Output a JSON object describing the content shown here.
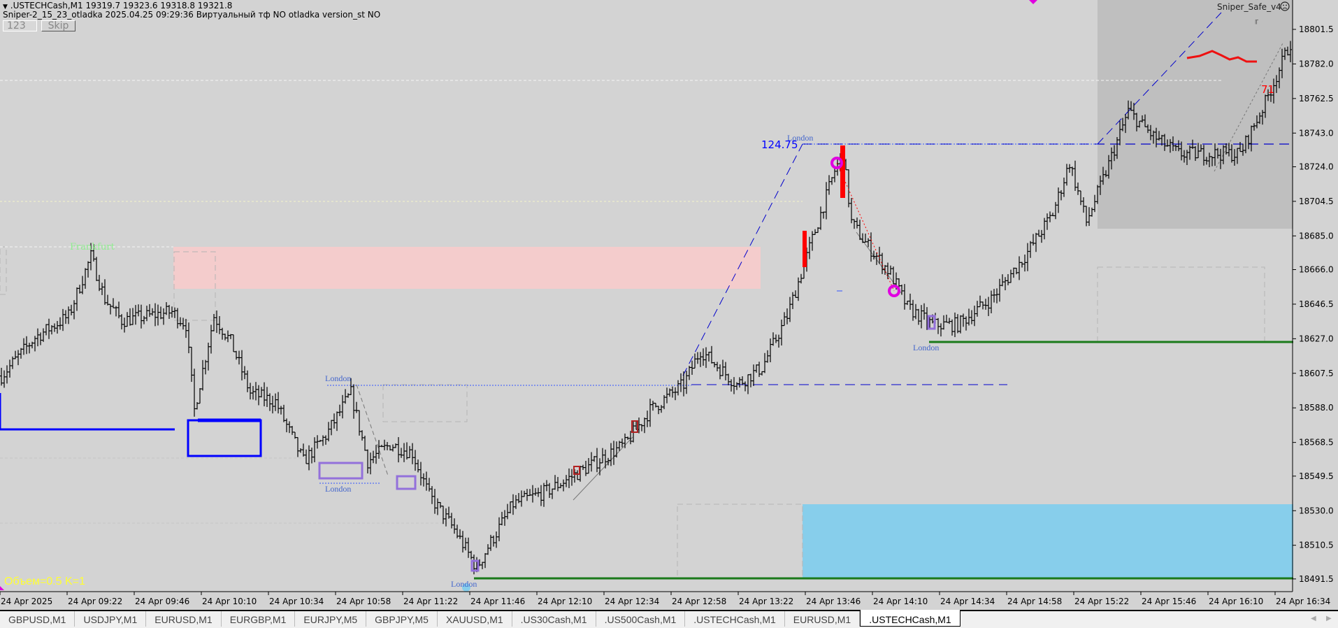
{
  "header": {
    "symbol_line": ".USTECHCash,M1  19319.7 19323.6 19318.8 19321.8",
    "indicator_line": "Sniper-2_15_23_otladka  2025.04.25 09:29:36  Виртуальный тф NO  otladka  version_st NO",
    "input_value": "123",
    "skip_label": "Skip"
  },
  "expert": {
    "name": "Sniper_Safe_v4",
    "status_icon": "sad-face-icon"
  },
  "chart_labels": {
    "volume": "Объем=0.5 K=1",
    "range_value": "124.75",
    "count": "71",
    "frankfurt": "Frankfurt",
    "london": "London"
  },
  "colors": {
    "background": "#d3d3d3",
    "bars": "#000000",
    "supply_zone": "#f4cccc",
    "demand_zone": "#87ceeb",
    "session_box": "#bfbfbf",
    "support_line": "#1a7a1a",
    "blue_level": "#0000ff",
    "marker": "#e000e0",
    "volume_text": "#ffff33"
  },
  "price_axis": [
    "18801.5",
    "18782.0",
    "18762.5",
    "18743.0",
    "18724.0",
    "18704.5",
    "18685.0",
    "18666.0",
    "18646.5",
    "18627.0",
    "18607.5",
    "18588.0",
    "18568.5",
    "18549.5",
    "18530.0",
    "18510.5",
    "18491.5"
  ],
  "time_axis": [
    "24 Apr 2025",
    "24 Apr 09:22",
    "24 Apr 09:46",
    "24 Apr 10:10",
    "24 Apr 10:34",
    "24 Apr 10:58",
    "24 Apr 11:22",
    "24 Apr 11:46",
    "24 Apr 12:10",
    "24 Apr 12:34",
    "24 Apr 12:58",
    "24 Apr 13:22",
    "24 Apr 13:46",
    "24 Apr 14:10",
    "24 Apr 14:34",
    "24 Apr 14:58",
    "24 Apr 15:22",
    "24 Apr 15:46",
    "24 Apr 16:10",
    "24 Apr 16:34"
  ],
  "price_path": [
    [
      "08:58",
      18606
    ],
    [
      "09:10",
      18627.7
    ],
    [
      "09:22",
      18639.7
    ],
    [
      "09:30",
      18673.5
    ],
    [
      "09:35",
      18649.4
    ],
    [
      "09:41",
      18637.3
    ],
    [
      "09:59",
      18642.2
    ],
    [
      "10:04",
      18635
    ],
    [
      "10:07",
      18586.7
    ],
    [
      "10:14",
      18639.7
    ],
    [
      "10:20",
      18625.3
    ],
    [
      "10:27",
      18596.4
    ],
    [
      "10:36",
      18591.5
    ],
    [
      "10:46",
      18557.8
    ],
    [
      "10:54",
      18572.3
    ],
    [
      "11:03",
      18596.4
    ],
    [
      "11:09",
      18557.8
    ],
    [
      "11:17",
      18567.4
    ],
    [
      "11:25",
      18562.6
    ],
    [
      "11:31",
      18538.5
    ],
    [
      "11:40",
      18519.3
    ],
    [
      "11:48",
      18497.6
    ],
    [
      "11:52",
      18509.6
    ],
    [
      "12:01",
      18533.7
    ],
    [
      "12:13",
      18540.9
    ],
    [
      "12:26",
      18553
    ],
    [
      "12:41",
      18567.4
    ],
    [
      "12:50",
      18586.7
    ],
    [
      "13:02",
      18601.2
    ],
    [
      "13:08",
      18620.5
    ],
    [
      "13:21",
      18601.2
    ],
    [
      "13:30",
      18610.8
    ],
    [
      "13:39",
      18639.7
    ],
    [
      "13:48",
      18683.1
    ],
    [
      "13:56",
      18721.7
    ],
    [
      "13:59",
      18731.3
    ],
    [
      "14:02",
      18692.8
    ],
    [
      "14:06",
      18683.1
    ],
    [
      "14:16",
      18663.8
    ],
    [
      "14:22",
      18644.6
    ],
    [
      "14:31",
      18634.9
    ],
    [
      "14:40",
      18634.9
    ],
    [
      "14:52",
      18649.4
    ],
    [
      "15:04",
      18673.5
    ],
    [
      "15:14",
      18697.6
    ],
    [
      "15:20",
      18726.5
    ],
    [
      "15:26",
      18692.8
    ],
    [
      "15:32",
      18716.9
    ],
    [
      "15:41",
      18755.4
    ],
    [
      "15:50",
      18741
    ],
    [
      "15:59",
      18731.3
    ],
    [
      "16:12",
      18731.3
    ],
    [
      "16:21",
      18731.3
    ],
    [
      "16:30",
      18760.3
    ],
    [
      "16:39",
      18794
    ]
  ],
  "tabs": [
    {
      "label": "GBPUSD,M1"
    },
    {
      "label": "USDJPY,M1"
    },
    {
      "label": "EURUSD,M1"
    },
    {
      "label": "EURGBP,M1"
    },
    {
      "label": "EURJPY,M5"
    },
    {
      "label": "GBPJPY,M5"
    },
    {
      "label": "XAUUSD,M1"
    },
    {
      "label": ".US30Cash,M1"
    },
    {
      "label": ".US500Cash,M1"
    },
    {
      "label": ".USTECHCash,M1"
    },
    {
      "label": "EURUSD,M1"
    },
    {
      "label": ".USTECHCash,M1",
      "active": true
    }
  ]
}
